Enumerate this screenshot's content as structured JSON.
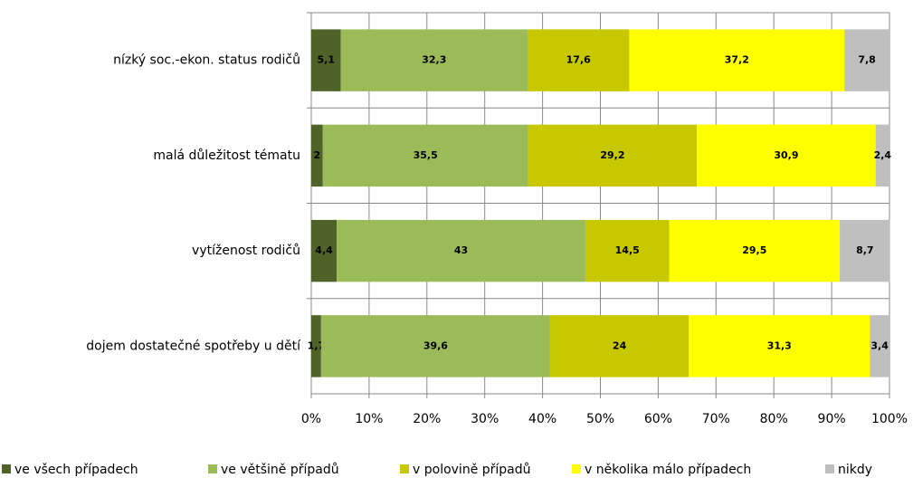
{
  "chart_data": {
    "type": "stacked_barh",
    "categories": [
      "nízký soc.-ekon. status rodičů",
      "malá důležitost tématu",
      "vytíženost rodičů",
      "dojem dostatečné spotřeby u dětí"
    ],
    "series": [
      {
        "name": "ve všech případech",
        "color": "#4f6228",
        "values": [
          5.1,
          2,
          4.4,
          1.7
        ],
        "value_labels": [
          "5,1",
          "2",
          "4,4",
          "1,7"
        ]
      },
      {
        "name": "ve většině případů",
        "color": "#9bbb59",
        "values": [
          32.3,
          35.5,
          43,
          39.6
        ],
        "value_labels": [
          "32,3",
          "35,5",
          "43",
          "39,6"
        ]
      },
      {
        "name": "v polovině případů",
        "color": "#c8c800",
        "values": [
          17.6,
          29.2,
          14.5,
          24
        ],
        "value_labels": [
          "17,6",
          "29,2",
          "14,5",
          "24"
        ]
      },
      {
        "name": "v několika málo případech",
        "color": "#ffff00",
        "values": [
          37.2,
          30.9,
          29.5,
          31.3
        ],
        "value_labels": [
          "37,2",
          "30,9",
          "29,5",
          "31,3"
        ]
      },
      {
        "name": "nikdy",
        "color": "#bfbfbf",
        "values": [
          7.8,
          2.4,
          8.7,
          3.4
        ],
        "value_labels": [
          "7,8",
          "2,4",
          "8,7",
          "3,4"
        ]
      }
    ],
    "xlim": [
      0,
      100
    ],
    "xticks": [
      {
        "value": 0,
        "label": "0%"
      },
      {
        "value": 10,
        "label": "10%"
      },
      {
        "value": 20,
        "label": "20%"
      },
      {
        "value": 30,
        "label": "30%"
      },
      {
        "value": 40,
        "label": "40%"
      },
      {
        "value": 50,
        "label": "50%"
      },
      {
        "value": 60,
        "label": "60%"
      },
      {
        "value": 70,
        "label": "70%"
      },
      {
        "value": 80,
        "label": "80%"
      },
      {
        "value": 90,
        "label": "90%"
      },
      {
        "value": 100,
        "label": "100%"
      }
    ],
    "grid": true,
    "legend": "bottom"
  }
}
